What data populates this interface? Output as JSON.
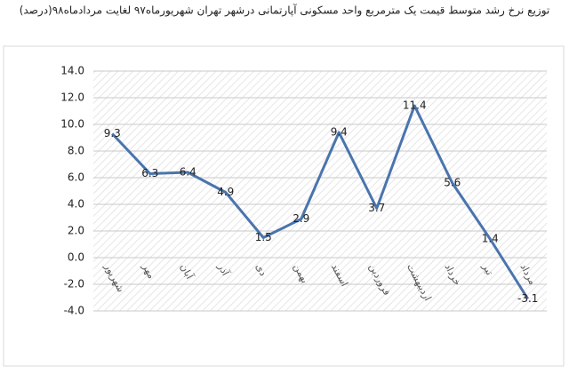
{
  "chart_data": {
    "type": "line",
    "title": "توزیع نرخ رشد متوسط قیمت یک مترمربع واحد مسکونی آپارتمانی درشهر تهران  شهریورماه۹۷ لغایت مردادماه۹۸(درصد)",
    "categories": [
      "شهریور",
      "مهر",
      "آبان",
      "آذر",
      "دی",
      "بهمن",
      "اسفند",
      "فروردین",
      "اردیبهشت",
      "خرداد",
      "تیر",
      "مرداد"
    ],
    "values": [
      9.3,
      6.3,
      6.4,
      4.9,
      1.5,
      2.9,
      9.4,
      3.7,
      11.4,
      5.6,
      1.4,
      -3.1
    ],
    "color": "#4a74ad",
    "ylim": [
      -4,
      14
    ],
    "yticks": [
      {
        "value": -4,
        "label": "-4.0"
      },
      {
        "value": -2,
        "label": "-2.0"
      },
      {
        "value": 0,
        "label": "0.0"
      },
      {
        "value": 2,
        "label": "2.0"
      },
      {
        "value": 4,
        "label": "4.0"
      },
      {
        "value": 6,
        "label": "6.0"
      },
      {
        "value": 8,
        "label": "8.0"
      },
      {
        "value": 10,
        "label": "10.0"
      },
      {
        "value": 12,
        "label": "12.0"
      },
      {
        "value": 14,
        "label": "14.0"
      }
    ],
    "grid": true
  }
}
